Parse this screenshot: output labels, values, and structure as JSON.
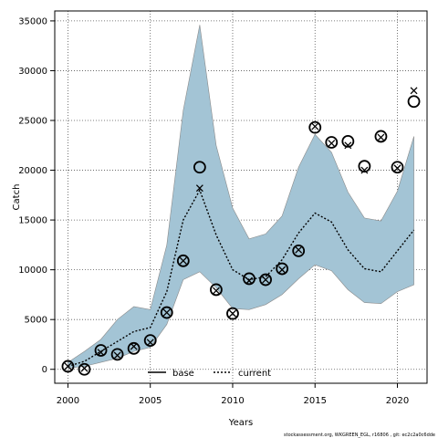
{
  "chart_data": {
    "type": "line",
    "xlabel": "Years",
    "ylabel": "Catch",
    "xlim": [
      1999.2,
      2021.8
    ],
    "ylim": [
      -1400,
      36000
    ],
    "xticks": [
      2000,
      2005,
      2010,
      2015,
      2020
    ],
    "yticks": [
      0,
      5000,
      10000,
      15000,
      20000,
      25000,
      30000,
      35000
    ],
    "grid": true,
    "legend_position": "bottom-center",
    "legend": [
      {
        "label": "base",
        "style": "solid"
      },
      {
        "label": "current",
        "style": "dotted"
      }
    ],
    "footer": "stockassessment.org, WKGREEN_EGL, r16806 , git: ec2c2a0c6dde",
    "x": [
      2000,
      2001,
      2002,
      2003,
      2004,
      2005,
      2006,
      2007,
      2008,
      2009,
      2010,
      2011,
      2012,
      2013,
      2014,
      2015,
      2016,
      2017,
      2018,
      2019,
      2020,
      2021
    ],
    "band_upper": [
      700,
      1800,
      3000,
      5000,
      6300,
      6000,
      12500,
      26000,
      34600,
      22500,
      16200,
      13100,
      13600,
      15400,
      20300,
      23600,
      21800,
      17800,
      15200,
      14900,
      17900,
      23400
    ],
    "band_lower": [
      100,
      300,
      700,
      1100,
      1800,
      2200,
      4500,
      9000,
      9800,
      8200,
      6100,
      6000,
      6500,
      7500,
      9100,
      10500,
      9900,
      8000,
      6700,
      6600,
      7800,
      8500
    ],
    "current_line": [
      300,
      800,
      1800,
      2800,
      3800,
      4200,
      7800,
      15000,
      18000,
      13500,
      10000,
      9000,
      9300,
      11000,
      13700,
      15700,
      14800,
      12000,
      10100,
      9800,
      11900,
      14000
    ],
    "observed_circles": [
      300,
      0,
      1900,
      1500,
      2100,
      2900,
      5700,
      10900,
      20300,
      8000,
      5600,
      9100,
      9000,
      10100,
      11900,
      24300,
      22800,
      22900,
      20400,
      23400,
      20300,
      26900
    ],
    "base_crosses": [
      300,
      100,
      1700,
      1400,
      2300,
      2700,
      5700,
      10900,
      18200,
      7900,
      5600,
      8900,
      9000,
      10000,
      12000,
      24400,
      22700,
      22500,
      20000,
      23300,
      20200,
      28000
    ]
  }
}
